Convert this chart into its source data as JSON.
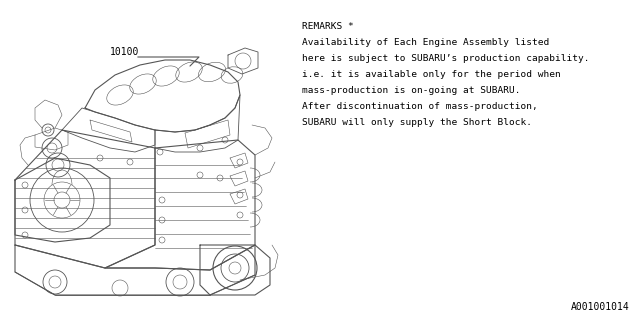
{
  "background_color": "#ffffff",
  "remarks_title": "REMARKS *",
  "remarks_lines": [
    "Availability of Each Engine Assembly listed",
    "here is subject to SUBARU’s production capability.",
    "i.e. it is available only for the period when",
    "mass-production is on-going at SUBARU.",
    "After discontinuation of mass-production,",
    "SUBARU will only supply the Short Block."
  ],
  "part_label": "10100",
  "footer_text": "A001001014",
  "line_color": "#555555",
  "text_color": "#000000",
  "font_size_remarks": 6.8,
  "font_size_label": 7.0,
  "font_size_footer": 7.0
}
